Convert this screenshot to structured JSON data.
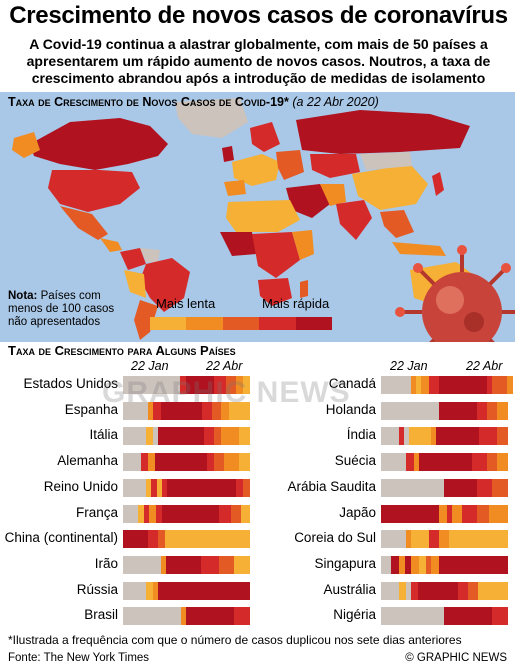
{
  "header": {
    "title": "Crescimento de novos casos de coronavírus",
    "subtitle_lines": [
      "A Covid-19 continua a alastrar globalmente, com mais de 50 países a",
      "apresentarem um rápido aumento de novos casos. Noutros, a taxa de",
      "crescimento abrandou após a introdução de medidas de isolamento"
    ]
  },
  "map": {
    "heading": "Taxa de Crescimento de Novos Casos de Covid-19*",
    "date": "(a 22 Abr 2020)",
    "note_bold": "Nota:",
    "note_lines": [
      "Países com",
      "menos de 100 casos",
      "não apresentados"
    ],
    "legend": {
      "slow_label": "Mais lenta",
      "fast_label": "Mais rápida",
      "colors": [
        "#f6b035",
        "#f08c22",
        "#e45a24",
        "#d52a2a",
        "#b0121f"
      ]
    }
  },
  "colors": {
    "none": "#cdc3bd",
    "slow": "#f6b035",
    "mid_slow": "#f08c22",
    "mid": "#e45a24",
    "fast": "#d52a2a",
    "fastest": "#b0121f",
    "ocean": "#a9c7e6"
  },
  "chart_data": {
    "type": "heatmap",
    "title": "Taxa de Crescimento para Alguns Países",
    "x_start": "22 Jan",
    "x_end": "22 Abr",
    "value_scale": "0 = menos de 100 casos (cinzento); 1 = mais lenta … 5 = mais rápida",
    "series": [
      {
        "name": "Estados Unidos",
        "segments": [
          [
            0.45,
            0
          ],
          [
            0.05,
            4
          ],
          [
            0.22,
            5
          ],
          [
            0.1,
            4
          ],
          [
            0.08,
            3
          ],
          [
            0.05,
            2
          ],
          [
            0.05,
            1
          ]
        ]
      },
      {
        "name": "Espanha",
        "segments": [
          [
            0.2,
            0
          ],
          [
            0.04,
            2
          ],
          [
            0.06,
            4
          ],
          [
            0.33,
            5
          ],
          [
            0.08,
            4
          ],
          [
            0.07,
            3
          ],
          [
            0.06,
            2
          ],
          [
            0.16,
            1
          ]
        ]
      },
      {
        "name": "Itália",
        "segments": [
          [
            0.18,
            0
          ],
          [
            0.06,
            1
          ],
          [
            0.04,
            0
          ],
          [
            0.36,
            5
          ],
          [
            0.08,
            4
          ],
          [
            0.06,
            3
          ],
          [
            0.14,
            2
          ],
          [
            0.08,
            1
          ]
        ]
      },
      {
        "name": "Alemanha",
        "segments": [
          [
            0.14,
            0
          ],
          [
            0.06,
            4
          ],
          [
            0.05,
            2
          ],
          [
            0.42,
            5
          ],
          [
            0.05,
            4
          ],
          [
            0.08,
            3
          ],
          [
            0.12,
            2
          ],
          [
            0.08,
            1
          ]
        ]
      },
      {
        "name": "Reino Unido",
        "segments": [
          [
            0.18,
            0
          ],
          [
            0.04,
            1
          ],
          [
            0.05,
            4
          ],
          [
            0.04,
            1
          ],
          [
            0.04,
            4
          ],
          [
            0.55,
            5
          ],
          [
            0.05,
            4
          ],
          [
            0.05,
            3
          ]
        ]
      },
      {
        "name": "França",
        "segments": [
          [
            0.12,
            0
          ],
          [
            0.05,
            1
          ],
          [
            0.04,
            4
          ],
          [
            0.05,
            2
          ],
          [
            0.05,
            4
          ],
          [
            0.45,
            5
          ],
          [
            0.1,
            4
          ],
          [
            0.08,
            3
          ],
          [
            0.06,
            1
          ]
        ]
      },
      {
        "name": "China (continental)",
        "segments": [
          [
            0.2,
            5
          ],
          [
            0.08,
            4
          ],
          [
            0.05,
            3
          ],
          [
            0.67,
            1
          ]
        ]
      },
      {
        "name": "Irão",
        "segments": [
          [
            0.3,
            0
          ],
          [
            0.04,
            2
          ],
          [
            0.28,
            5
          ],
          [
            0.14,
            4
          ],
          [
            0.12,
            3
          ],
          [
            0.12,
            1
          ]
        ]
      },
      {
        "name": "Rússia",
        "segments": [
          [
            0.18,
            0
          ],
          [
            0.06,
            1
          ],
          [
            0.04,
            2
          ],
          [
            0.72,
            5
          ]
        ]
      },
      {
        "name": "Brasil",
        "segments": [
          [
            0.46,
            0
          ],
          [
            0.04,
            2
          ],
          [
            0.38,
            5
          ],
          [
            0.12,
            4
          ]
        ]
      },
      {
        "name": "Canadá",
        "segments": [
          [
            0.24,
            0
          ],
          [
            0.04,
            2
          ],
          [
            0.04,
            1
          ],
          [
            0.06,
            2
          ],
          [
            0.08,
            4
          ],
          [
            0.38,
            5
          ],
          [
            0.04,
            4
          ],
          [
            0.12,
            3
          ],
          [
            0.04,
            2
          ]
        ]
      },
      {
        "name": "Holanda",
        "segments": [
          [
            0.46,
            0
          ],
          [
            0.3,
            5
          ],
          [
            0.08,
            4
          ],
          [
            0.08,
            3
          ],
          [
            0.08,
            2
          ]
        ]
      },
      {
        "name": "Índia",
        "segments": [
          [
            0.14,
            0
          ],
          [
            0.04,
            4
          ],
          [
            0.04,
            0
          ],
          [
            0.18,
            1
          ],
          [
            0.04,
            2
          ],
          [
            0.34,
            5
          ],
          [
            0.14,
            4
          ],
          [
            0.08,
            3
          ]
        ]
      },
      {
        "name": "Suécia",
        "segments": [
          [
            0.2,
            0
          ],
          [
            0.06,
            4
          ],
          [
            0.04,
            2
          ],
          [
            0.42,
            5
          ],
          [
            0.12,
            4
          ],
          [
            0.08,
            3
          ],
          [
            0.08,
            2
          ]
        ]
      },
      {
        "name": "Arábia Saudita",
        "segments": [
          [
            0.5,
            0
          ],
          [
            0.26,
            5
          ],
          [
            0.12,
            4
          ],
          [
            0.12,
            3
          ]
        ]
      },
      {
        "name": "Japão",
        "segments": [
          [
            0.46,
            5
          ],
          [
            0.06,
            2
          ],
          [
            0.04,
            4
          ],
          [
            0.08,
            2
          ],
          [
            0.12,
            4
          ],
          [
            0.1,
            3
          ],
          [
            0.14,
            2
          ]
        ]
      },
      {
        "name": "Coreia do Sul",
        "segments": [
          [
            0.2,
            0
          ],
          [
            0.04,
            2
          ],
          [
            0.14,
            1
          ],
          [
            0.08,
            4
          ],
          [
            0.08,
            2
          ],
          [
            0.46,
            1
          ]
        ]
      },
      {
        "name": "Singapura",
        "segments": [
          [
            0.08,
            0
          ],
          [
            0.06,
            5
          ],
          [
            0.05,
            2
          ],
          [
            0.05,
            5
          ],
          [
            0.06,
            2
          ],
          [
            0.06,
            1
          ],
          [
            0.04,
            3
          ],
          [
            0.06,
            2
          ],
          [
            0.54,
            5
          ]
        ]
      },
      {
        "name": "Austrália",
        "segments": [
          [
            0.14,
            0
          ],
          [
            0.06,
            1
          ],
          [
            0.04,
            0
          ],
          [
            0.05,
            4
          ],
          [
            0.32,
            5
          ],
          [
            0.08,
            4
          ],
          [
            0.08,
            3
          ],
          [
            0.23,
            1
          ]
        ]
      },
      {
        "name": "Nigéria",
        "segments": [
          [
            0.5,
            0
          ],
          [
            0.38,
            5
          ],
          [
            0.12,
            4
          ]
        ]
      }
    ]
  },
  "footer": {
    "footnote": "*Ilustrada a frequência com que o número de casos duplicou nos sete dias anteriores",
    "source": "Fonte: The New York Times",
    "copyright": "© GRAPHIC NEWS",
    "watermark": "GRAPHIC NEWS"
  }
}
